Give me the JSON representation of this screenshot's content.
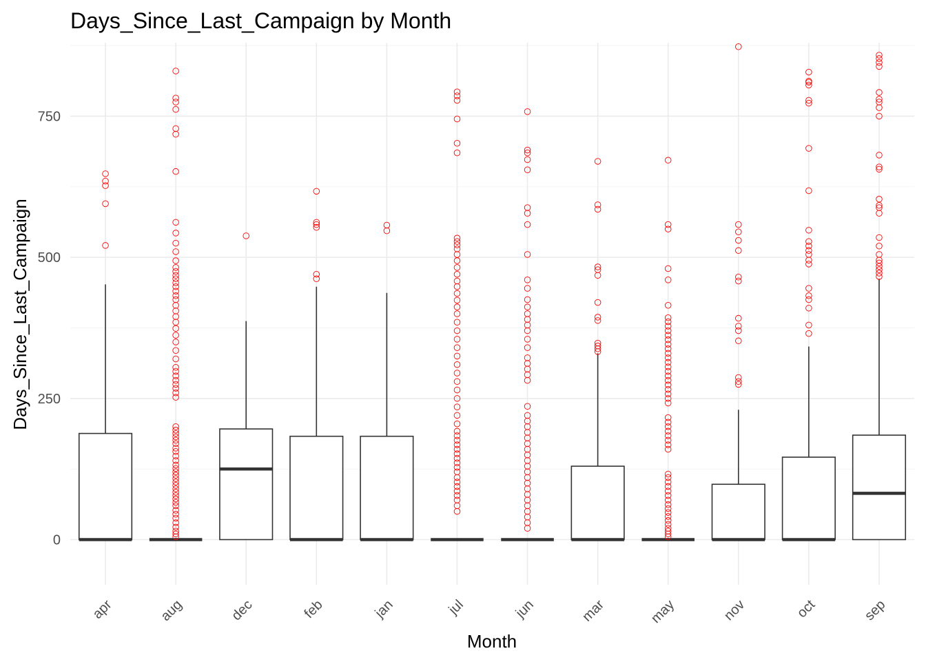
{
  "chart_data": {
    "type": "boxplot",
    "title": "Days_Since_Last_Campaign by Month",
    "xlabel": "Month",
    "ylabel": "Days_Since_Last_Campaign",
    "ylim": [
      -80,
      880
    ],
    "y_ticks": [
      0,
      250,
      500,
      750
    ],
    "grid": "on",
    "legend": "none",
    "colors": {
      "box_stroke": "#333333",
      "outlier": "#ff0000",
      "grid": "#ebebeb"
    },
    "categories": [
      "apr",
      "aug",
      "dec",
      "feb",
      "jan",
      "jul",
      "jun",
      "mar",
      "may",
      "nov",
      "oct",
      "sep"
    ],
    "boxes": [
      {
        "category": "apr",
        "lower_whisker": 0,
        "q1": 0,
        "median": 0,
        "q3": 188,
        "upper_whisker": 452,
        "outliers": [
          521,
          595,
          627,
          635,
          648
        ]
      },
      {
        "category": "aug",
        "lower_whisker": 0,
        "q1": 0,
        "median": 0,
        "q3": 0,
        "upper_whisker": 0,
        "outliers": [
          5,
          10,
          15,
          22,
          30,
          38,
          45,
          52,
          60,
          66,
          72,
          78,
          84,
          90,
          96,
          102,
          108,
          114,
          120,
          126,
          132,
          140,
          148,
          156,
          162,
          170,
          176,
          182,
          188,
          194,
          200,
          252,
          260,
          268,
          275,
          282,
          290,
          298,
          305,
          320,
          335,
          350,
          362,
          374,
          385,
          395,
          405,
          415,
          425,
          432,
          440,
          448,
          455,
          462,
          468,
          475,
          482,
          494,
          510,
          525,
          543,
          562,
          652,
          718,
          728,
          762,
          775,
          782,
          830
        ]
      },
      {
        "category": "dec",
        "lower_whisker": 0,
        "q1": 0,
        "median": 125,
        "q3": 196,
        "upper_whisker": 387,
        "outliers": [
          538
        ]
      },
      {
        "category": "feb",
        "lower_whisker": 0,
        "q1": 0,
        "median": 0,
        "q3": 183,
        "upper_whisker": 448,
        "outliers": [
          462,
          470,
          553,
          558,
          562,
          617
        ]
      },
      {
        "category": "jan",
        "lower_whisker": 0,
        "q1": 0,
        "median": 0,
        "q3": 183,
        "upper_whisker": 437,
        "outliers": [
          547,
          557
        ]
      },
      {
        "category": "jul",
        "lower_whisker": 0,
        "q1": 0,
        "median": 0,
        "q3": 0,
        "upper_whisker": 0,
        "outliers": [
          50,
          60,
          70,
          78,
          86,
          94,
          102,
          110,
          120,
          128,
          136,
          144,
          152,
          160,
          168,
          176,
          184,
          192,
          205,
          220,
          235,
          250,
          265,
          280,
          295,
          310,
          325,
          340,
          355,
          370,
          385,
          400,
          412,
          424,
          436,
          448,
          458,
          470,
          482,
          494,
          505,
          515,
          522,
          528,
          534,
          685,
          702,
          745,
          778,
          786,
          793
        ]
      },
      {
        "category": "jun",
        "lower_whisker": 0,
        "q1": 0,
        "median": 0,
        "q3": 0,
        "upper_whisker": 0,
        "outliers": [
          20,
          30,
          40,
          50,
          60,
          70,
          80,
          90,
          100,
          110,
          120,
          130,
          140,
          150,
          160,
          170,
          180,
          190,
          200,
          210,
          220,
          236,
          282,
          292,
          302,
          312,
          322,
          340,
          355,
          370,
          380,
          390,
          400,
          412,
          425,
          445,
          460,
          505,
          558,
          578,
          588,
          655,
          673,
          685,
          690,
          758
        ]
      },
      {
        "category": "mar",
        "lower_whisker": 0,
        "q1": 0,
        "median": 0,
        "q3": 130,
        "upper_whisker": 330,
        "outliers": [
          333,
          338,
          343,
          348,
          388,
          394,
          420,
          468,
          478,
          483,
          585,
          593,
          670
        ]
      },
      {
        "category": "may",
        "lower_whisker": 0,
        "q1": 0,
        "median": 0,
        "q3": 0,
        "upper_whisker": 0,
        "outliers": [
          5,
          10,
          15,
          20,
          27,
          34,
          41,
          48,
          55,
          62,
          70,
          78,
          86,
          94,
          102,
          110,
          116,
          160,
          168,
          176,
          184,
          192,
          200,
          208,
          216,
          242,
          250,
          258,
          266,
          274,
          282,
          290,
          298,
          306,
          314,
          322,
          330,
          338,
          346,
          354,
          362,
          370,
          378,
          386,
          393,
          415,
          460,
          480,
          550,
          558,
          672
        ]
      },
      {
        "category": "nov",
        "lower_whisker": 0,
        "q1": 0,
        "median": 0,
        "q3": 98,
        "upper_whisker": 230,
        "outliers": [
          275,
          280,
          287,
          352,
          370,
          378,
          392,
          458,
          465,
          512,
          530,
          545,
          558,
          873
        ]
      },
      {
        "category": "oct",
        "lower_whisker": 0,
        "q1": 0,
        "median": 0,
        "q3": 146,
        "upper_whisker": 342,
        "outliers": [
          365,
          380,
          410,
          425,
          432,
          445,
          488,
          495,
          505,
          512,
          520,
          528,
          548,
          618,
          693,
          773,
          778,
          805,
          810,
          812,
          828
        ]
      },
      {
        "category": "sep",
        "lower_whisker": 0,
        "q1": 0,
        "median": 82,
        "q3": 185,
        "upper_whisker": 462,
        "outliers": [
          466,
          472,
          478,
          484,
          490,
          495,
          505,
          520,
          535,
          578,
          588,
          592,
          603,
          656,
          660,
          681,
          750,
          765,
          775,
          780,
          792,
          838,
          845,
          852,
          858
        ]
      }
    ]
  }
}
